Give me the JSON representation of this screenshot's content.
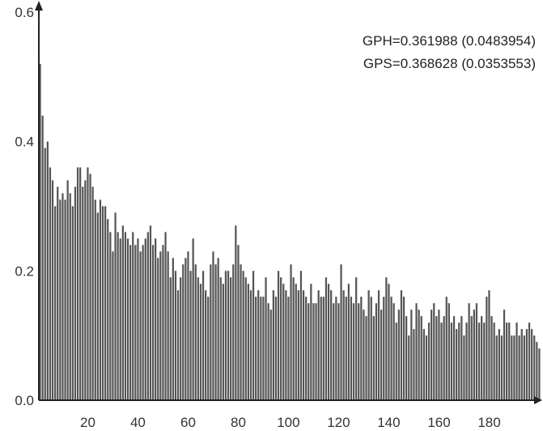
{
  "chart_data": {
    "type": "bar",
    "title": "",
    "xlabel": "",
    "ylabel": "",
    "xlim": [
      1,
      200
    ],
    "ylim": [
      0,
      0.6
    ],
    "x_ticks": [
      20,
      40,
      60,
      80,
      100,
      120,
      140,
      160,
      180
    ],
    "y_ticks": [
      "0.0",
      "0.2",
      "0.4",
      "0.6"
    ],
    "grid": false,
    "legend": "none",
    "annotations": [
      "GPH=0.361988 (0.0483954)",
      "GPS=0.368628 (0.0353553)"
    ],
    "bar_color": "#555555",
    "series": [
      {
        "values": [
          0.52,
          0.44,
          0.39,
          0.4,
          0.36,
          0.34,
          0.3,
          0.33,
          0.31,
          0.32,
          0.31,
          0.34,
          0.32,
          0.3,
          0.33,
          0.36,
          0.36,
          0.33,
          0.34,
          0.36,
          0.35,
          0.33,
          0.31,
          0.29,
          0.31,
          0.3,
          0.3,
          0.28,
          0.26,
          0.23,
          0.29,
          0.26,
          0.25,
          0.27,
          0.26,
          0.25,
          0.24,
          0.26,
          0.24,
          0.25,
          0.23,
          0.24,
          0.25,
          0.26,
          0.27,
          0.24,
          0.25,
          0.22,
          0.23,
          0.24,
          0.26,
          0.23,
          0.19,
          0.22,
          0.2,
          0.17,
          0.19,
          0.21,
          0.22,
          0.23,
          0.2,
          0.25,
          0.21,
          0.19,
          0.18,
          0.2,
          0.17,
          0.16,
          0.21,
          0.23,
          0.21,
          0.22,
          0.19,
          0.18,
          0.2,
          0.2,
          0.19,
          0.21,
          0.27,
          0.24,
          0.21,
          0.2,
          0.19,
          0.18,
          0.17,
          0.2,
          0.16,
          0.17,
          0.16,
          0.16,
          0.19,
          0.15,
          0.14,
          0.17,
          0.16,
          0.2,
          0.19,
          0.18,
          0.17,
          0.16,
          0.21,
          0.19,
          0.18,
          0.17,
          0.2,
          0.17,
          0.16,
          0.15,
          0.18,
          0.15,
          0.15,
          0.17,
          0.16,
          0.16,
          0.19,
          0.18,
          0.17,
          0.15,
          0.16,
          0.15,
          0.21,
          0.17,
          0.16,
          0.18,
          0.16,
          0.15,
          0.19,
          0.15,
          0.16,
          0.14,
          0.13,
          0.17,
          0.16,
          0.13,
          0.15,
          0.17,
          0.14,
          0.16,
          0.19,
          0.18,
          0.16,
          0.15,
          0.12,
          0.14,
          0.17,
          0.16,
          0.13,
          0.1,
          0.14,
          0.11,
          0.15,
          0.14,
          0.13,
          0.11,
          0.1,
          0.12,
          0.14,
          0.15,
          0.13,
          0.14,
          0.12,
          0.13,
          0.16,
          0.15,
          0.12,
          0.13,
          0.11,
          0.12,
          0.13,
          0.1,
          0.12,
          0.15,
          0.13,
          0.14,
          0.15,
          0.12,
          0.13,
          0.12,
          0.16,
          0.17,
          0.13,
          0.12,
          0.1,
          0.11,
          0.1,
          0.14,
          0.12,
          0.12,
          0.1,
          0.1,
          0.12,
          0.1,
          0.11,
          0.1,
          0.11,
          0.12,
          0.11,
          0.1,
          0.09,
          0.08
        ]
      }
    ]
  }
}
